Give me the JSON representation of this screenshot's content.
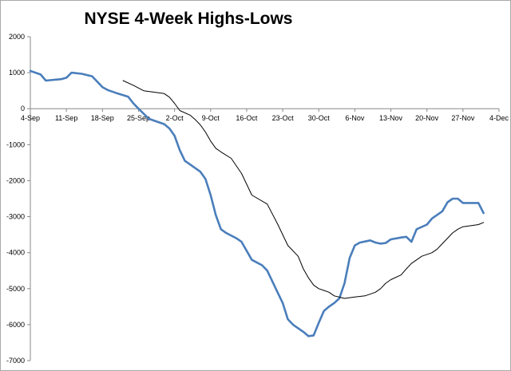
{
  "chart_data": {
    "type": "line",
    "title": "NYSE 4-Week Highs-Lows",
    "xlabel": "",
    "ylabel": "",
    "ylim": [
      -7000,
      2000
    ],
    "y_ticks": [
      2000,
      1000,
      0,
      -1000,
      -2000,
      -3000,
      -4000,
      -5000,
      -6000,
      -7000
    ],
    "x_tick_labels": [
      "4-Sep",
      "11-Sep",
      "18-Sep",
      "25-Sep",
      "2-Oct",
      "9-Oct",
      "16-Oct",
      "23-Oct",
      "30-Oct",
      "6-Nov",
      "13-Nov",
      "20-Nov",
      "27-Nov",
      "4-Dec"
    ],
    "grid": false,
    "legend": "none",
    "series": [
      {
        "color": "#4a7ebb",
        "line_width": "thick",
        "points": [
          [
            0,
            1050
          ],
          [
            2,
            950
          ],
          [
            3,
            780
          ],
          [
            6,
            820
          ],
          [
            7,
            860
          ],
          [
            8,
            1000
          ],
          [
            10,
            970
          ],
          [
            12,
            900
          ],
          [
            14,
            600
          ],
          [
            15,
            520
          ],
          [
            17,
            420
          ],
          [
            19,
            330
          ],
          [
            20,
            150
          ],
          [
            21,
            0
          ],
          [
            23,
            -280
          ],
          [
            25,
            -380
          ],
          [
            26,
            -430
          ],
          [
            27,
            -550
          ],
          [
            28,
            -750
          ],
          [
            29,
            -1150
          ],
          [
            30,
            -1450
          ],
          [
            31,
            -1550
          ],
          [
            33,
            -1750
          ],
          [
            34,
            -1950
          ],
          [
            35,
            -2400
          ],
          [
            36,
            -2950
          ],
          [
            37,
            -3350
          ],
          [
            38,
            -3450
          ],
          [
            40,
            -3600
          ],
          [
            41,
            -3700
          ],
          [
            43,
            -4200
          ],
          [
            45,
            -4350
          ],
          [
            46,
            -4500
          ],
          [
            48,
            -5100
          ],
          [
            49,
            -5400
          ],
          [
            50,
            -5850
          ],
          [
            51,
            -6000
          ],
          [
            52,
            -6100
          ],
          [
            53,
            -6200
          ],
          [
            54,
            -6320
          ],
          [
            55,
            -6300
          ],
          [
            56,
            -5950
          ],
          [
            57,
            -5620
          ],
          [
            58,
            -5500
          ],
          [
            59,
            -5400
          ],
          [
            60,
            -5270
          ],
          [
            61,
            -4850
          ],
          [
            62,
            -4150
          ],
          [
            63,
            -3800
          ],
          [
            64,
            -3720
          ],
          [
            66,
            -3660
          ],
          [
            67,
            -3720
          ],
          [
            68,
            -3750
          ],
          [
            69,
            -3730
          ],
          [
            70,
            -3630
          ],
          [
            72,
            -3580
          ],
          [
            73,
            -3560
          ],
          [
            74,
            -3700
          ],
          [
            75,
            -3350
          ],
          [
            77,
            -3220
          ],
          [
            78,
            -3050
          ],
          [
            80,
            -2850
          ],
          [
            81,
            -2600
          ],
          [
            82,
            -2500
          ],
          [
            83,
            -2500
          ],
          [
            84,
            -2620
          ],
          [
            87,
            -2620
          ],
          [
            88,
            -2900
          ]
        ]
      },
      {
        "color": "#000000",
        "line_width": "thin",
        "points": [
          [
            18,
            780
          ],
          [
            20,
            650
          ],
          [
            22,
            500
          ],
          [
            26,
            420
          ],
          [
            27,
            320
          ],
          [
            28,
            150
          ],
          [
            29,
            -50
          ],
          [
            31,
            -180
          ],
          [
            32,
            -300
          ],
          [
            33,
            -450
          ],
          [
            34,
            -650
          ],
          [
            35,
            -900
          ],
          [
            36,
            -1100
          ],
          [
            37,
            -1200
          ],
          [
            39,
            -1380
          ],
          [
            41,
            -1800
          ],
          [
            43,
            -2400
          ],
          [
            46,
            -2650
          ],
          [
            48,
            -3200
          ],
          [
            50,
            -3800
          ],
          [
            52,
            -4100
          ],
          [
            53,
            -4450
          ],
          [
            54,
            -4700
          ],
          [
            55,
            -4900
          ],
          [
            56,
            -5000
          ],
          [
            57,
            -5050
          ],
          [
            58,
            -5100
          ],
          [
            59,
            -5200
          ],
          [
            61,
            -5270
          ],
          [
            63,
            -5230
          ],
          [
            65,
            -5200
          ],
          [
            67,
            -5100
          ],
          [
            68,
            -5000
          ],
          [
            69,
            -4850
          ],
          [
            70,
            -4750
          ],
          [
            72,
            -4620
          ],
          [
            73,
            -4450
          ],
          [
            74,
            -4300
          ],
          [
            75,
            -4200
          ],
          [
            76,
            -4100
          ],
          [
            78,
            -4000
          ],
          [
            79,
            -3900
          ],
          [
            80,
            -3750
          ],
          [
            81,
            -3600
          ],
          [
            82,
            -3450
          ],
          [
            83,
            -3350
          ],
          [
            84,
            -3280
          ],
          [
            87,
            -3220
          ],
          [
            88,
            -3160
          ]
        ]
      }
    ]
  }
}
